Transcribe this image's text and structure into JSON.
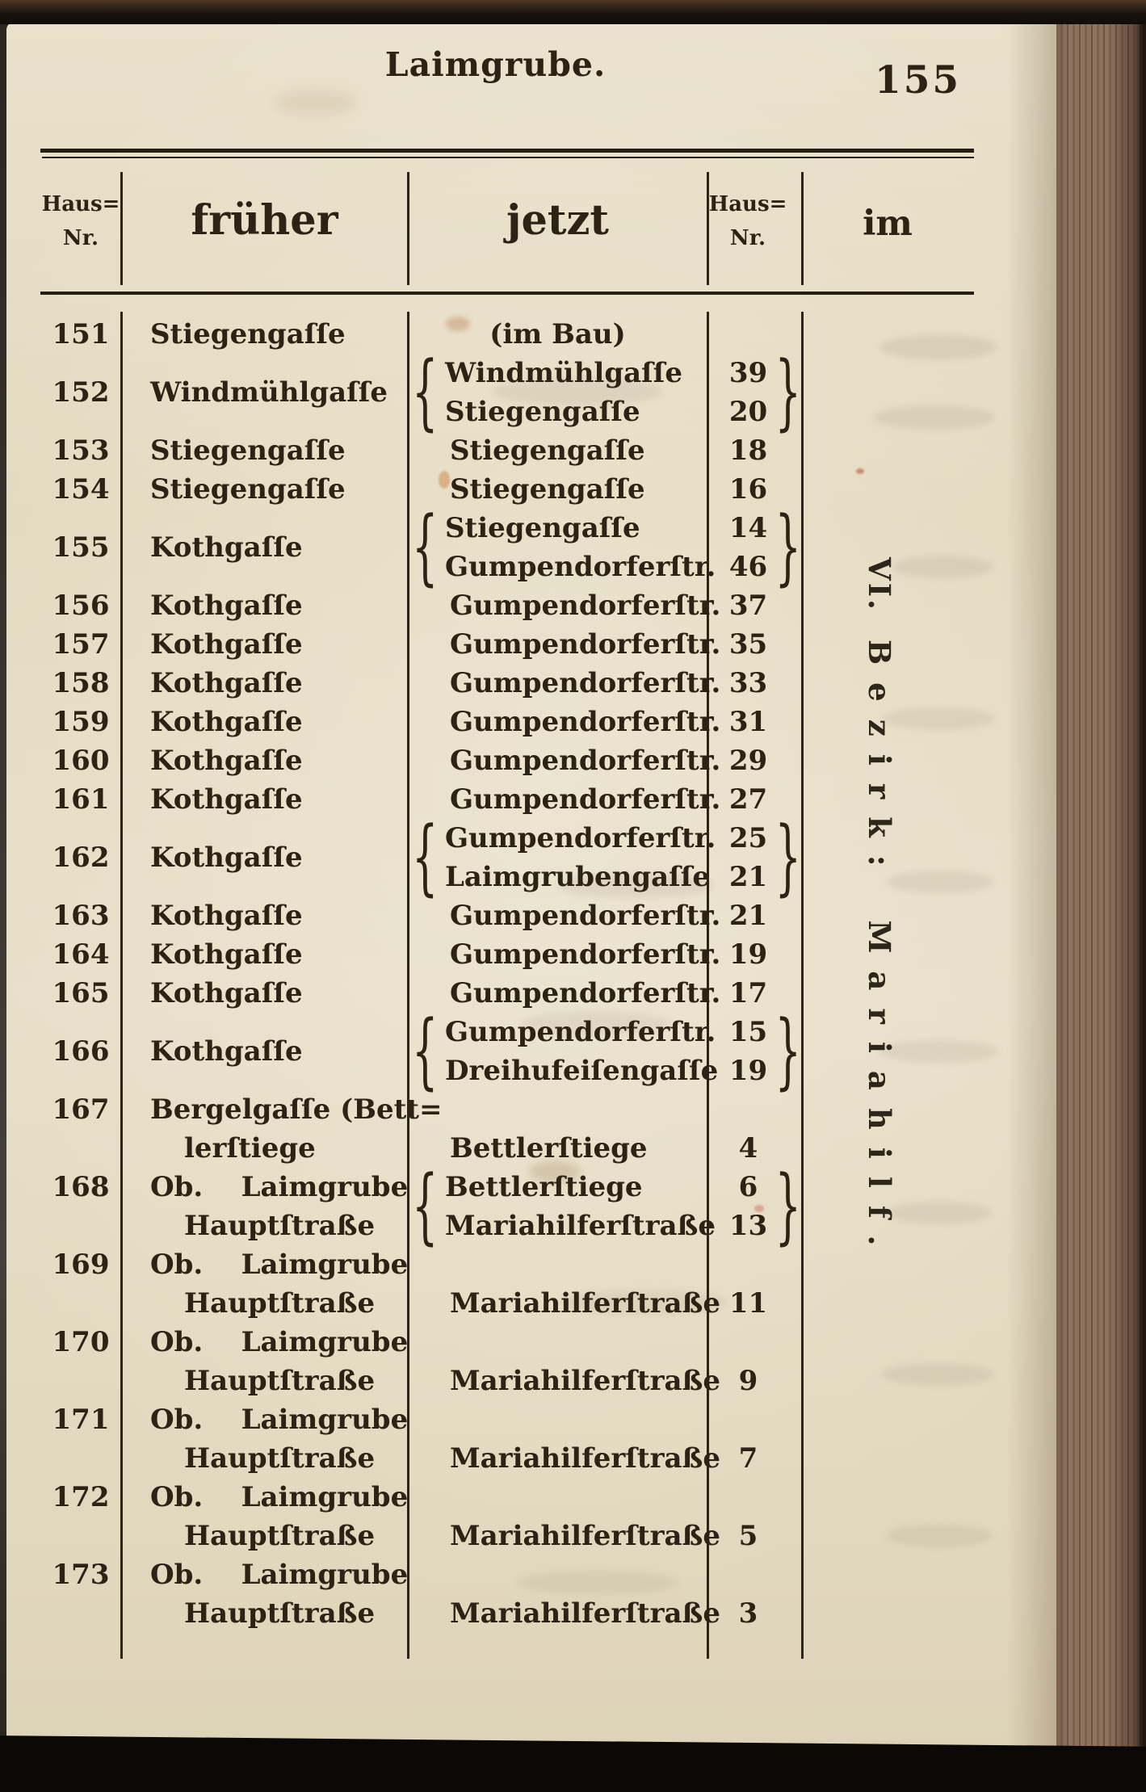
{
  "page": {
    "running_header": "Laimgrube.",
    "page_number": "155",
    "margin_caption_prefix": "VI.",
    "margin_caption_rest": "Bezirk: Mariahilf."
  },
  "table": {
    "headers": {
      "hausnr_old_line1": "Haus=",
      "hausnr_old_line2": "Nr.",
      "frueher": "früher",
      "jetzt": "jetzt",
      "hausnr_new_line1": "Haus=",
      "hausnr_new_line2": "Nr.",
      "im": "im"
    },
    "rows": [
      {
        "nr": "151",
        "frueher": [
          "Stiegengaſſe"
        ],
        "jetzt": [
          {
            "name": "(im Bau)",
            "nr": "",
            "center": true
          }
        ]
      },
      {
        "nr": "152",
        "frueher": [
          "Windmühlgaſſe"
        ],
        "jetzt": [
          {
            "name": "Windmühlgaſſe",
            "nr": "39"
          },
          {
            "name": "Stiegengaſſe",
            "nr": "20"
          }
        ],
        "brace": true,
        "nr_center": true
      },
      {
        "nr": "153",
        "frueher": [
          "Stiegengaſſe"
        ],
        "jetzt": [
          {
            "name": "Stiegengaſſe",
            "nr": "18"
          }
        ]
      },
      {
        "nr": "154",
        "frueher": [
          "Stiegengaſſe"
        ],
        "jetzt": [
          {
            "name": "Stiegengaſſe",
            "nr": "16"
          }
        ]
      },
      {
        "nr": "155",
        "frueher": [
          "Kothgaſſe"
        ],
        "jetzt": [
          {
            "name": "Stiegengaſſe",
            "nr": "14"
          },
          {
            "name": "Gumpendorferſtr.",
            "nr": "46"
          }
        ],
        "brace": true,
        "nr_center": true
      },
      {
        "nr": "156",
        "frueher": [
          "Kothgaſſe"
        ],
        "jetzt": [
          {
            "name": "Gumpendorferſtr.",
            "nr": "37"
          }
        ]
      },
      {
        "nr": "157",
        "frueher": [
          "Kothgaſſe"
        ],
        "jetzt": [
          {
            "name": "Gumpendorferſtr.",
            "nr": "35"
          }
        ]
      },
      {
        "nr": "158",
        "frueher": [
          "Kothgaſſe"
        ],
        "jetzt": [
          {
            "name": "Gumpendorferſtr.",
            "nr": "33"
          }
        ]
      },
      {
        "nr": "159",
        "frueher": [
          "Kothgaſſe"
        ],
        "jetzt": [
          {
            "name": "Gumpendorferſtr.",
            "nr": "31"
          }
        ]
      },
      {
        "nr": "160",
        "frueher": [
          "Kothgaſſe"
        ],
        "jetzt": [
          {
            "name": "Gumpendorferſtr.",
            "nr": "29"
          }
        ]
      },
      {
        "nr": "161",
        "frueher": [
          "Kothgaſſe"
        ],
        "jetzt": [
          {
            "name": "Gumpendorferſtr.",
            "nr": "27"
          }
        ]
      },
      {
        "nr": "162",
        "frueher": [
          "Kothgaſſe"
        ],
        "jetzt": [
          {
            "name": "Gumpendorferſtr.",
            "nr": "25"
          },
          {
            "name": "Laimgrubengaſſe",
            "nr": "21"
          }
        ],
        "brace": true,
        "nr_center": true
      },
      {
        "nr": "163",
        "frueher": [
          "Kothgaſſe"
        ],
        "jetzt": [
          {
            "name": "Gumpendorferſtr.",
            "nr": "21"
          }
        ]
      },
      {
        "nr": "164",
        "frueher": [
          "Kothgaſſe"
        ],
        "jetzt": [
          {
            "name": "Gumpendorferſtr.",
            "nr": "19"
          }
        ]
      },
      {
        "nr": "165",
        "frueher": [
          "Kothgaſſe"
        ],
        "jetzt": [
          {
            "name": "Gumpendorferſtr.",
            "nr": "17"
          }
        ]
      },
      {
        "nr": "166",
        "frueher": [
          "Kothgaſſe"
        ],
        "jetzt": [
          {
            "name": "Gumpendorferſtr.",
            "nr": "15"
          },
          {
            "name": "Dreihufeiſengaſſe",
            "nr": "19"
          }
        ],
        "brace": true,
        "nr_center": true
      },
      {
        "nr": "167",
        "frueher": [
          "Bergelgaſſe (Bett=",
          "lerſtiege"
        ],
        "jetzt": [
          {
            "name": "Bettlerſtiege",
            "nr": "4"
          }
        ],
        "jetzt_row": 1
      },
      {
        "nr": "168",
        "frueher": [
          "Ob.    Laimgrube",
          "Hauptſtraße"
        ],
        "jetzt": [
          {
            "name": "Bettlerſtiege",
            "nr": "6"
          },
          {
            "name": "Mariahilferſtraße",
            "nr": "13"
          }
        ],
        "brace": true
      },
      {
        "nr": "169",
        "frueher": [
          "Ob.    Laimgrube",
          "Hauptſtraße"
        ],
        "jetzt": [
          {
            "name": "Mariahilferſtraße",
            "nr": "11"
          }
        ],
        "jetzt_row": 1
      },
      {
        "nr": "170",
        "frueher": [
          "Ob.    Laimgrube",
          "Hauptſtraße"
        ],
        "jetzt": [
          {
            "name": "Mariahilferſtraße",
            "nr": "9"
          }
        ],
        "jetzt_row": 1
      },
      {
        "nr": "171",
        "frueher": [
          "Ob.    Laimgrube",
          "Hauptſtraße"
        ],
        "jetzt": [
          {
            "name": "Mariahilferſtraße",
            "nr": "7"
          }
        ],
        "jetzt_row": 1
      },
      {
        "nr": "172",
        "frueher": [
          "Ob.    Laimgrube",
          "Hauptſtraße"
        ],
        "jetzt": [
          {
            "name": "Mariahilferſtraße",
            "nr": "5"
          }
        ],
        "jetzt_row": 1
      },
      {
        "nr": "173",
        "frueher": [
          "Ob.    Laimgrube",
          "Hauptſtraße"
        ],
        "jetzt": [
          {
            "name": "Mariahilferſtraße",
            "nr": "3"
          }
        ],
        "jetzt_row": 1
      }
    ]
  },
  "colors": {
    "paper": "#e5dcc4",
    "ink": "#2c2315",
    "fore_edge": "#8a6e5b",
    "scan_background": "#0d0b09"
  }
}
